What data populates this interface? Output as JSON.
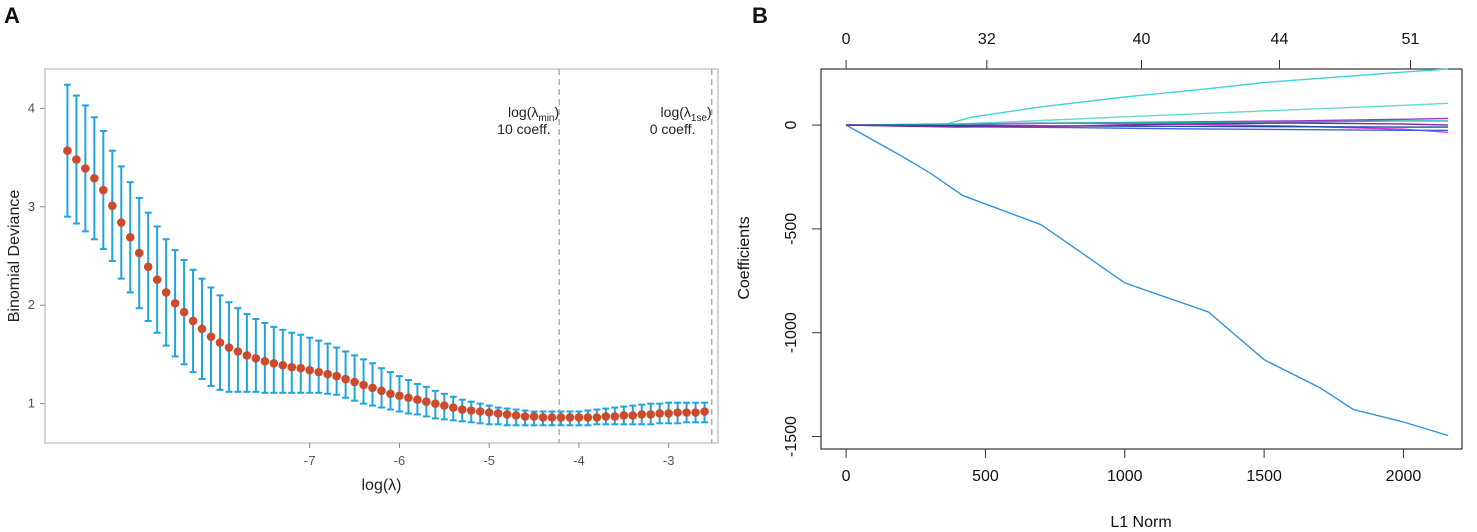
{
  "panels": {
    "a_label": "A",
    "b_label": "B"
  },
  "chart_data": [
    {
      "panel": "A",
      "type": "scatter",
      "subtype": "cross-validation error bars",
      "xlabel": "log(λ)",
      "ylabel": "Binomial Deviance",
      "xlim": [
        -9.95,
        -2.45
      ],
      "ylim": [
        0.6,
        4.4
      ],
      "xticks": [
        -7,
        -6,
        -5,
        -4,
        -3
      ],
      "yticks": [
        1,
        2,
        3,
        4
      ],
      "x": [
        -9.7,
        -9.6,
        -9.5,
        -9.4,
        -9.3,
        -9.2,
        -9.1,
        -9.0,
        -8.9,
        -8.8,
        -8.7,
        -8.6,
        -8.5,
        -8.4,
        -8.3,
        -8.2,
        -8.1,
        -8.0,
        -7.9,
        -7.8,
        -7.7,
        -7.6,
        -7.5,
        -7.4,
        -7.3,
        -7.2,
        -7.1,
        -7.0,
        -6.9,
        -6.8,
        -6.7,
        -6.6,
        -6.5,
        -6.4,
        -6.3,
        -6.2,
        -6.1,
        -6.0,
        -5.9,
        -5.8,
        -5.7,
        -5.6,
        -5.5,
        -5.4,
        -5.3,
        -5.2,
        -5.1,
        -5.0,
        -4.9,
        -4.8,
        -4.7,
        -4.6,
        -4.5,
        -4.4,
        -4.3,
        -4.2,
        -4.1,
        -4.0,
        -3.9,
        -3.8,
        -3.7,
        -3.6,
        -3.5,
        -3.4,
        -3.3,
        -3.2,
        -3.1,
        -3.0,
        -2.9,
        -2.8,
        -2.7,
        -2.6
      ],
      "mean": [
        3.57,
        3.48,
        3.39,
        3.29,
        3.17,
        3.01,
        2.84,
        2.69,
        2.53,
        2.39,
        2.26,
        2.13,
        2.02,
        1.93,
        1.84,
        1.76,
        1.68,
        1.62,
        1.57,
        1.53,
        1.49,
        1.46,
        1.43,
        1.41,
        1.39,
        1.37,
        1.36,
        1.34,
        1.32,
        1.3,
        1.28,
        1.25,
        1.22,
        1.19,
        1.16,
        1.13,
        1.1,
        1.08,
        1.06,
        1.04,
        1.02,
        1.0,
        0.98,
        0.96,
        0.94,
        0.93,
        0.92,
        0.91,
        0.9,
        0.89,
        0.88,
        0.87,
        0.87,
        0.86,
        0.86,
        0.86,
        0.86,
        0.86,
        0.86,
        0.86,
        0.87,
        0.87,
        0.88,
        0.88,
        0.89,
        0.89,
        0.9,
        0.9,
        0.91,
        0.91,
        0.91,
        0.92
      ],
      "upper": [
        4.24,
        4.13,
        4.03,
        3.91,
        3.77,
        3.57,
        3.41,
        3.25,
        3.09,
        2.94,
        2.8,
        2.67,
        2.56,
        2.46,
        2.36,
        2.27,
        2.18,
        2.1,
        2.03,
        1.97,
        1.91,
        1.86,
        1.82,
        1.78,
        1.75,
        1.72,
        1.7,
        1.67,
        1.64,
        1.61,
        1.57,
        1.53,
        1.49,
        1.45,
        1.41,
        1.36,
        1.32,
        1.28,
        1.24,
        1.2,
        1.17,
        1.13,
        1.1,
        1.07,
        1.04,
        1.02,
        1.0,
        0.98,
        0.96,
        0.95,
        0.94,
        0.93,
        0.92,
        0.92,
        0.92,
        0.92,
        0.92,
        0.92,
        0.93,
        0.94,
        0.95,
        0.96,
        0.97,
        0.98,
        0.99,
        1.0,
        1.0,
        1.01,
        1.01,
        1.01,
        1.01,
        1.01
      ],
      "lower": [
        2.9,
        2.83,
        2.75,
        2.67,
        2.57,
        2.45,
        2.27,
        2.13,
        1.97,
        1.84,
        1.72,
        1.59,
        1.48,
        1.4,
        1.32,
        1.25,
        1.18,
        1.14,
        1.12,
        1.12,
        1.12,
        1.12,
        1.11,
        1.11,
        1.11,
        1.11,
        1.11,
        1.11,
        1.11,
        1.1,
        1.09,
        1.06,
        1.03,
        1.0,
        0.98,
        0.96,
        0.94,
        0.92,
        0.9,
        0.89,
        0.87,
        0.85,
        0.84,
        0.83,
        0.82,
        0.81,
        0.8,
        0.79,
        0.79,
        0.78,
        0.78,
        0.78,
        0.78,
        0.78,
        0.78,
        0.78,
        0.78,
        0.78,
        0.78,
        0.79,
        0.79,
        0.79,
        0.79,
        0.79,
        0.79,
        0.79,
        0.8,
        0.8,
        0.8,
        0.81,
        0.81,
        0.81
      ],
      "vlines": [
        {
          "x": -4.22,
          "label1_base": "log(λ",
          "label1_sub": "min",
          "label1_close": ")",
          "label2": "10 coeff."
        },
        {
          "x": -2.52,
          "label1_base": "log(λ",
          "label1_sub": "1se",
          "label1_close": ")",
          "label2": "0 coeff."
        }
      ],
      "colors": {
        "point": "#cc4b2c",
        "errorbar": "#1ea5e0",
        "vline": "#aaaaaa",
        "frame": "#bbbbbb"
      }
    },
    {
      "panel": "B",
      "type": "line",
      "subtype": "coefficient paths",
      "xlabel": "L1 Norm",
      "ylabel": "Coefficients",
      "xlim": [
        -90,
        2210
      ],
      "ylim": [
        -1560,
        270
      ],
      "xticks": [
        0,
        500,
        1000,
        1500,
        2000
      ],
      "yticks": [
        0,
        -500,
        -1000,
        -1500
      ],
      "top_ticks": [
        {
          "at": 0,
          "label": "0"
        },
        {
          "at": 505,
          "label": "32"
        },
        {
          "at": 1060,
          "label": "40"
        },
        {
          "at": 1555,
          "label": "44"
        },
        {
          "at": 2025,
          "label": "51"
        }
      ],
      "series": [
        {
          "name": "path-1",
          "color": "#2f93e0",
          "x": [
            0,
            100,
            200,
            300,
            360,
            420,
            460,
            700,
            1000,
            1300,
            1500,
            1700,
            1820,
            2000,
            2160
          ],
          "y": [
            0,
            -75,
            -150,
            -230,
            -285,
            -340,
            -360,
            -480,
            -760,
            -900,
            -1130,
            -1265,
            -1370,
            -1430,
            -1495
          ]
        },
        {
          "name": "path-2",
          "color": "#42d2d6",
          "x": [
            0,
            300,
            360,
            450,
            700,
            1000,
            1300,
            1500,
            2000,
            2160
          ],
          "y": [
            0,
            5,
            5,
            38,
            88,
            135,
            175,
            205,
            255,
            270
          ]
        },
        {
          "name": "path-3",
          "color": "#64d9cc",
          "x": [
            0,
            400,
            700,
            1000,
            1500,
            2000,
            2160
          ],
          "y": [
            0,
            5,
            22,
            40,
            68,
            95,
            105
          ]
        },
        {
          "name": "path-4",
          "color": "#9b36c8",
          "x": [
            0,
            300,
            700,
            1200,
            1600,
            2000,
            2160
          ],
          "y": [
            0,
            -2,
            8,
            15,
            20,
            28,
            32
          ]
        },
        {
          "name": "path-5",
          "color": "#d23dcd",
          "x": [
            0,
            300,
            700,
            1200,
            1600,
            2000,
            2160
          ],
          "y": [
            0,
            2,
            10,
            5,
            -5,
            -20,
            -35
          ]
        },
        {
          "name": "path-6",
          "color": "#3f62e0",
          "x": [
            0,
            400,
            800,
            1200,
            1600,
            2000,
            2160
          ],
          "y": [
            0,
            -8,
            -12,
            -18,
            -22,
            -25,
            -25
          ]
        },
        {
          "name": "path-7",
          "color": "#2ab1a5",
          "x": [
            0,
            400,
            800,
            1200,
            1600,
            2000,
            2160
          ],
          "y": [
            0,
            4,
            10,
            12,
            15,
            20,
            20
          ]
        },
        {
          "name": "path-8",
          "color": "#1f47a8",
          "x": [
            0,
            400,
            800,
            1200,
            1600,
            2000,
            2160
          ],
          "y": [
            0,
            -3,
            -4,
            -6,
            -8,
            -10,
            -10
          ]
        },
        {
          "name": "path-9",
          "color": "#7e2aa8",
          "x": [
            0,
            400,
            800,
            1200,
            1600,
            2000,
            2160
          ],
          "y": [
            0,
            -10,
            -5,
            5,
            10,
            5,
            0
          ]
        }
      ],
      "colors": {
        "frame": "#333333"
      }
    }
  ]
}
